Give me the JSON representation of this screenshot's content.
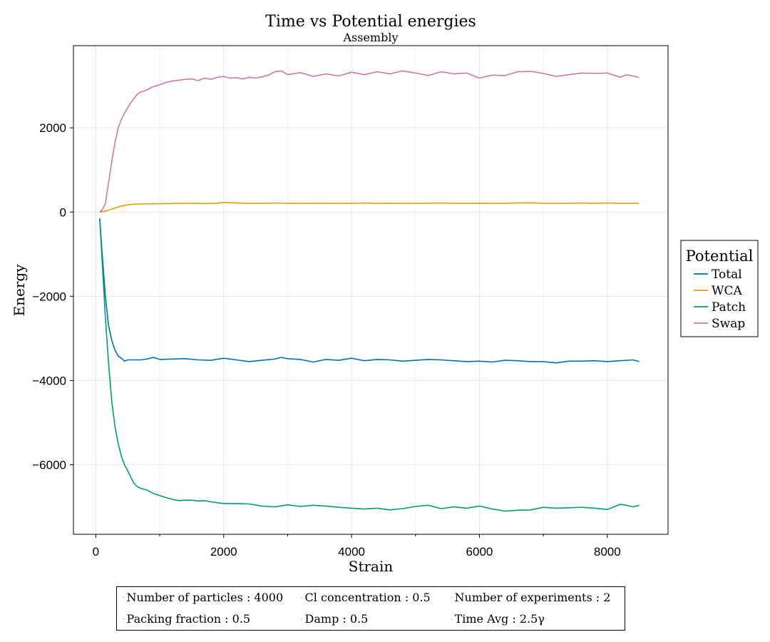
{
  "chart_data": {
    "type": "line",
    "title": "Time vs Potential energies",
    "subtitle": "Assembly",
    "xlabel": "Strain",
    "ylabel": "Energy",
    "xlim": [
      -350,
      8950
    ],
    "ylim": [
      -7650,
      3950
    ],
    "xticks": [
      0,
      2000,
      4000,
      6000,
      8000
    ],
    "yticks": [
      -6000,
      -4000,
      -2000,
      0,
      2000
    ],
    "xtick_labels": [
      "0",
      "2000",
      "4000",
      "6000",
      "8000"
    ],
    "ytick_labels": [
      "−6000",
      "−4000",
      "−2000",
      "0",
      "2000"
    ],
    "grid": true,
    "legend": {
      "title": "Potential",
      "placement": "right"
    },
    "series": [
      {
        "name": "Total",
        "color": "#0072b2",
        "x": [
          60,
          100,
          150,
          200,
          250,
          300,
          350,
          400,
          450,
          500,
          600,
          700,
          800,
          900,
          1000,
          1200,
          1400,
          1600,
          1800,
          2000,
          2200,
          2400,
          2600,
          2800,
          2900,
          3000,
          3200,
          3400,
          3600,
          3800,
          4000,
          4200,
          4400,
          4600,
          4800,
          5000,
          5200,
          5400,
          5600,
          5800,
          6000,
          6200,
          6400,
          6600,
          6800,
          7000,
          7200,
          7400,
          7600,
          7800,
          8000,
          8200,
          8400,
          8500
        ],
        "y": [
          -150,
          -1000,
          -2000,
          -2700,
          -3050,
          -3280,
          -3420,
          -3470,
          -3540,
          -3510,
          -3510,
          -3510,
          -3490,
          -3450,
          -3500,
          -3490,
          -3480,
          -3510,
          -3520,
          -3470,
          -3510,
          -3550,
          -3520,
          -3490,
          -3450,
          -3480,
          -3500,
          -3560,
          -3500,
          -3520,
          -3470,
          -3530,
          -3500,
          -3510,
          -3540,
          -3520,
          -3500,
          -3510,
          -3530,
          -3550,
          -3540,
          -3560,
          -3520,
          -3530,
          -3550,
          -3550,
          -3580,
          -3540,
          -3540,
          -3530,
          -3550,
          -3530,
          -3510,
          -3550
        ]
      },
      {
        "name": "WCA",
        "color": "#e69f00",
        "x": [
          60,
          150,
          250,
          350,
          450,
          550,
          700,
          900,
          1100,
          1300,
          1500,
          1700,
          1900,
          2000,
          2200,
          2400,
          2600,
          2800,
          3000,
          3200,
          3400,
          3600,
          3800,
          4000,
          4200,
          4400,
          4600,
          4800,
          5000,
          5200,
          5400,
          5600,
          5800,
          6000,
          6200,
          6400,
          6600,
          6800,
          7000,
          7200,
          7400,
          7600,
          7800,
          8000,
          8200,
          8400,
          8500
        ],
        "y": [
          0,
          20,
          70,
          120,
          160,
          180,
          190,
          195,
          200,
          205,
          205,
          200,
          210,
          230,
          215,
          205,
          210,
          215,
          210,
          205,
          210,
          210,
          205,
          210,
          215,
          205,
          210,
          205,
          205,
          210,
          215,
          210,
          205,
          210,
          205,
          210,
          215,
          220,
          210,
          205,
          210,
          215,
          210,
          215,
          205,
          210,
          205
        ]
      },
      {
        "name": "Patch",
        "color": "#009e73",
        "x": [
          60,
          100,
          150,
          200,
          250,
          300,
          350,
          400,
          450,
          500,
          550,
          600,
          650,
          700,
          800,
          900,
          1000,
          1100,
          1200,
          1300,
          1400,
          1500,
          1600,
          1700,
          1800,
          1900,
          2000,
          2200,
          2400,
          2600,
          2800,
          3000,
          3200,
          3400,
          3600,
          3800,
          4000,
          4200,
          4400,
          4600,
          4800,
          5000,
          5200,
          5400,
          5600,
          5800,
          6000,
          6200,
          6400,
          6600,
          6800,
          7000,
          7200,
          7400,
          7600,
          7800,
          8000,
          8200,
          8300,
          8400,
          8500
        ],
        "y": [
          -150,
          -1200,
          -2500,
          -3600,
          -4500,
          -5100,
          -5500,
          -5800,
          -6000,
          -6150,
          -6300,
          -6450,
          -6520,
          -6560,
          -6600,
          -6680,
          -6730,
          -6780,
          -6820,
          -6850,
          -6840,
          -6840,
          -6860,
          -6850,
          -6880,
          -6900,
          -6920,
          -6920,
          -6930,
          -6980,
          -7000,
          -6950,
          -6990,
          -6960,
          -6980,
          -7010,
          -7030,
          -7050,
          -7030,
          -7070,
          -7040,
          -6990,
          -6960,
          -7040,
          -7000,
          -7030,
          -6980,
          -7050,
          -7100,
          -7080,
          -7070,
          -7010,
          -7030,
          -7020,
          -7010,
          -7030,
          -7060,
          -6940,
          -6960,
          -7000,
          -6960
        ]
      },
      {
        "name": "Swap",
        "color": "#cc79a7",
        "x": [
          60,
          100,
          150,
          200,
          250,
          300,
          350,
          400,
          450,
          500,
          550,
          600,
          650,
          700,
          750,
          800,
          900,
          1000,
          1100,
          1200,
          1300,
          1400,
          1500,
          1600,
          1700,
          1800,
          1900,
          2000,
          2100,
          2200,
          2300,
          2400,
          2500,
          2600,
          2700,
          2800,
          2900,
          3000,
          3200,
          3400,
          3600,
          3800,
          4000,
          4200,
          4400,
          4600,
          4800,
          5000,
          5200,
          5400,
          5600,
          5800,
          6000,
          6200,
          6400,
          6600,
          6800,
          7000,
          7200,
          7400,
          7600,
          7800,
          8000,
          8200,
          8300,
          8400,
          8500
        ],
        "y": [
          0,
          50,
          200,
          700,
          1200,
          1650,
          2000,
          2200,
          2350,
          2480,
          2600,
          2700,
          2800,
          2850,
          2870,
          2900,
          2980,
          3020,
          3080,
          3110,
          3130,
          3150,
          3160,
          3120,
          3180,
          3150,
          3200,
          3220,
          3180,
          3190,
          3160,
          3200,
          3180,
          3210,
          3250,
          3330,
          3350,
          3260,
          3310,
          3220,
          3280,
          3230,
          3320,
          3260,
          3330,
          3280,
          3350,
          3300,
          3240,
          3330,
          3280,
          3300,
          3180,
          3250,
          3240,
          3330,
          3340,
          3290,
          3220,
          3260,
          3300,
          3290,
          3300,
          3200,
          3260,
          3230,
          3190
        ]
      }
    ]
  },
  "info": {
    "row1": [
      "Number of particles : 4000",
      "Cl concentration : 0.5",
      "Number of experiments : 2"
    ],
    "row2": [
      "Packing fraction : 0.5",
      "Damp : 0.5",
      "Time Avg : 2.5γ"
    ]
  }
}
